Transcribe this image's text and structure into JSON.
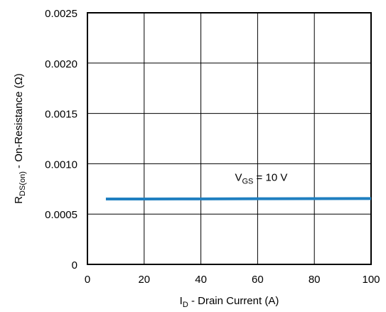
{
  "chart_data": {
    "type": "line",
    "title": "",
    "xlabel": {
      "main": "I",
      "sub": "D",
      "rest": " - Drain Current (A)"
    },
    "ylabel": {
      "main": "R",
      "sub": "DS(on)",
      "rest": " - On-Resistance (Ω)"
    },
    "xlim": [
      0,
      100
    ],
    "ylim": [
      0,
      0.0025
    ],
    "x_ticks": [
      "0",
      "20",
      "40",
      "60",
      "80",
      "100"
    ],
    "y_ticks": [
      "0",
      "0.0005",
      "0.0010",
      "0.0015",
      "0.0020",
      "0.0025"
    ],
    "grid": true,
    "series": [
      {
        "color": "#1f7fc0",
        "x": [
          6.5,
          20,
          40,
          60,
          80,
          100
        ],
        "y": [
          0.00065,
          0.00065,
          0.000651,
          0.000652,
          0.000653,
          0.000654
        ]
      }
    ],
    "annotations": [
      {
        "main": "V",
        "sub": "GS",
        "rest": " = 10 V"
      }
    ]
  }
}
